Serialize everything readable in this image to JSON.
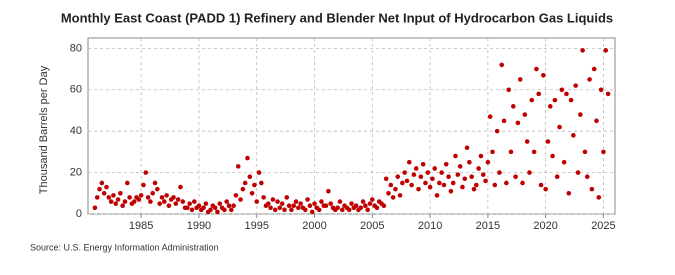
{
  "chart_data": {
    "type": "scatter",
    "title": "Monthly East Coast (PADD 1) Refinery and Blender Net Input of Hydrocarbon Gas Liquids",
    "y_label": "Thousand Barrels per Day",
    "source": "Source: U.S. Energy Information Administration",
    "xlim": [
      1980.4,
      2026
    ],
    "ylim": [
      0,
      85
    ],
    "xticks": [
      1985,
      1990,
      1995,
      2000,
      2005,
      2010,
      2015,
      2020,
      2025
    ],
    "yticks": [
      0,
      20,
      40,
      60,
      80
    ],
    "grid": true,
    "series": [
      {
        "color": "#c00000",
        "x": [
          1981.0,
          1981.2,
          1981.4,
          1981.6,
          1981.8,
          1982.0,
          1982.2,
          1982.4,
          1982.6,
          1982.8,
          1983.0,
          1983.2,
          1983.4,
          1983.6,
          1983.8,
          1984.0,
          1984.2,
          1984.4,
          1984.6,
          1984.8,
          1985.0,
          1985.2,
          1985.4,
          1985.6,
          1985.8,
          1986.0,
          1986.2,
          1986.4,
          1986.6,
          1986.8,
          1987.0,
          1987.2,
          1987.4,
          1987.6,
          1987.8,
          1988.0,
          1988.2,
          1988.4,
          1988.6,
          1988.8,
          1989.0,
          1989.2,
          1989.4,
          1989.6,
          1989.8,
          1990.0,
          1990.2,
          1990.4,
          1990.6,
          1990.8,
          1991.0,
          1991.2,
          1991.4,
          1991.6,
          1991.8,
          1992.0,
          1992.2,
          1992.4,
          1992.6,
          1992.8,
          1993.0,
          1993.2,
          1993.4,
          1993.6,
          1993.8,
          1994.0,
          1994.2,
          1994.4,
          1994.6,
          1994.8,
          1995.0,
          1995.2,
          1995.4,
          1995.6,
          1995.8,
          1996.0,
          1996.2,
          1996.4,
          1996.6,
          1996.8,
          1997.0,
          1997.2,
          1997.4,
          1997.6,
          1997.8,
          1998.0,
          1998.2,
          1998.4,
          1998.6,
          1998.8,
          1999.0,
          1999.2,
          1999.4,
          1999.6,
          1999.8,
          2000.0,
          2000.2,
          2000.4,
          2000.6,
          2000.8,
          2001.0,
          2001.2,
          2001.4,
          2001.6,
          2001.8,
          2002.0,
          2002.2,
          2002.4,
          2002.6,
          2002.8,
          2003.0,
          2003.2,
          2003.4,
          2003.6,
          2003.8,
          2004.0,
          2004.2,
          2004.4,
          2004.6,
          2004.8,
          2005.0,
          2005.2,
          2005.4,
          2005.6,
          2005.8,
          2006.0,
          2006.2,
          2006.4,
          2006.6,
          2006.8,
          2007.0,
          2007.2,
          2007.4,
          2007.6,
          2007.8,
          2008.0,
          2008.2,
          2008.4,
          2008.6,
          2008.8,
          2009.0,
          2009.2,
          2009.4,
          2009.6,
          2009.8,
          2010.0,
          2010.2,
          2010.4,
          2010.6,
          2010.8,
          2011.0,
          2011.2,
          2011.4,
          2011.6,
          2011.8,
          2012.0,
          2012.2,
          2012.4,
          2012.6,
          2012.8,
          2013.0,
          2013.2,
          2013.4,
          2013.6,
          2013.8,
          2014.0,
          2014.2,
          2014.4,
          2014.6,
          2014.8,
          2015.0,
          2015.2,
          2015.4,
          2015.6,
          2015.8,
          2016.0,
          2016.2,
          2016.4,
          2016.6,
          2016.8,
          2017.0,
          2017.2,
          2017.4,
          2017.6,
          2017.8,
          2018.0,
          2018.2,
          2018.4,
          2018.6,
          2018.8,
          2019.0,
          2019.2,
          2019.4,
          2019.6,
          2019.8,
          2020.0,
          2020.2,
          2020.4,
          2020.6,
          2020.8,
          2021.0,
          2021.2,
          2021.4,
          2021.6,
          2021.8,
          2022.0,
          2022.2,
          2022.4,
          2022.6,
          2022.8,
          2023.0,
          2023.2,
          2023.4,
          2023.6,
          2023.8,
          2024.0,
          2024.2,
          2024.4,
          2024.6,
          2024.8,
          2025.0,
          2025.2,
          2025.4
        ],
        "values": [
          3,
          8,
          12,
          15,
          10,
          13,
          8,
          6,
          9,
          5,
          7,
          10,
          4,
          6,
          15,
          8,
          5,
          6,
          8,
          7,
          9,
          14,
          20,
          8,
          6,
          10,
          15,
          12,
          5,
          8,
          6,
          9,
          4,
          7,
          8,
          5,
          7,
          13,
          6,
          3,
          3,
          5,
          2,
          6,
          3,
          4,
          2,
          3,
          5,
          1,
          2,
          4,
          3,
          1,
          5,
          3,
          2,
          6,
          4,
          2,
          4,
          9,
          23,
          7,
          12,
          15,
          27,
          18,
          10,
          14,
          6,
          20,
          15,
          8,
          4,
          5,
          3,
          7,
          2,
          6,
          3,
          5,
          2,
          8,
          4,
          2,
          4,
          6,
          3,
          5,
          3,
          2,
          7,
          4,
          1,
          5,
          3,
          2,
          6,
          4,
          4,
          11,
          5,
          3,
          2,
          3,
          6,
          2,
          4,
          3,
          2,
          5,
          3,
          4,
          2,
          3,
          6,
          4,
          2,
          5,
          7,
          4,
          3,
          6,
          5,
          4,
          17,
          10,
          14,
          8,
          12,
          18,
          9,
          15,
          20,
          16,
          25,
          14,
          19,
          22,
          12,
          18,
          24,
          15,
          20,
          13,
          17,
          22,
          9,
          15,
          20,
          14,
          24,
          18,
          11,
          15,
          28,
          19,
          23,
          13,
          17,
          32,
          25,
          18,
          12,
          14,
          22,
          28,
          19,
          16,
          25,
          47,
          30,
          14,
          40,
          20,
          72,
          45,
          15,
          60,
          30,
          52,
          18,
          44,
          65,
          15,
          48,
          35,
          20,
          55,
          30,
          70,
          58,
          14,
          67,
          12,
          35,
          52,
          28,
          55,
          18,
          42,
          60,
          25,
          58,
          10,
          55,
          38,
          62,
          20,
          48,
          79,
          30,
          18,
          65,
          12,
          70,
          45,
          8,
          60,
          30,
          79,
          58
        ]
      }
    ]
  }
}
